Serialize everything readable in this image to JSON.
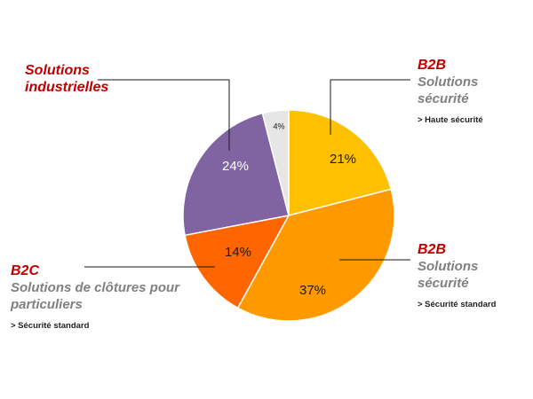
{
  "chart_data": {
    "type": "pie",
    "slices": [
      {
        "label": "B2B Solutions sécurité (Haute sécurité)",
        "value": 21,
        "display": "21%",
        "color": "#FFC000",
        "text_color": "#1a1a1a"
      },
      {
        "label": "B2B Solutions sécurité (Sécurité standard)",
        "value": 37,
        "display": "37%",
        "color": "#FF9900",
        "text_color": "#1a1a1a"
      },
      {
        "label": "B2C Solutions de clôtures pour particuliers",
        "value": 14,
        "display": "14%",
        "color": "#FF6600",
        "text_color": "#1a1a1a"
      },
      {
        "label": "Solutions industrielles",
        "value": 24,
        "display": "24%",
        "color": "#8064A2",
        "text_color": "#ffffff"
      },
      {
        "label": "",
        "value": 4,
        "display": "4%",
        "color": "#E6E6E6",
        "text_color": "#1a1a1a"
      }
    ]
  },
  "annotations": {
    "industrial": {
      "line1": "Solutions",
      "line2": "industrielles",
      "color": "#C00000"
    },
    "b2b_high": {
      "title": "B2B",
      "subtitle": "Solutions sécurité",
      "detail": "> Haute sécurité",
      "title_color": "#C00000"
    },
    "b2b_std": {
      "title": "B2B",
      "subtitle": "Solutions sécurité",
      "detail": "> Sécurité standard",
      "title_color": "#C00000"
    },
    "b2c": {
      "title": "B2C",
      "subtitle1": "Solutions de clôtures pour",
      "subtitle2": "particuliers",
      "detail": "> Sécurité standard",
      "title_color": "#C00000"
    }
  },
  "colors": {
    "leader_line": "#1a1a1a"
  }
}
